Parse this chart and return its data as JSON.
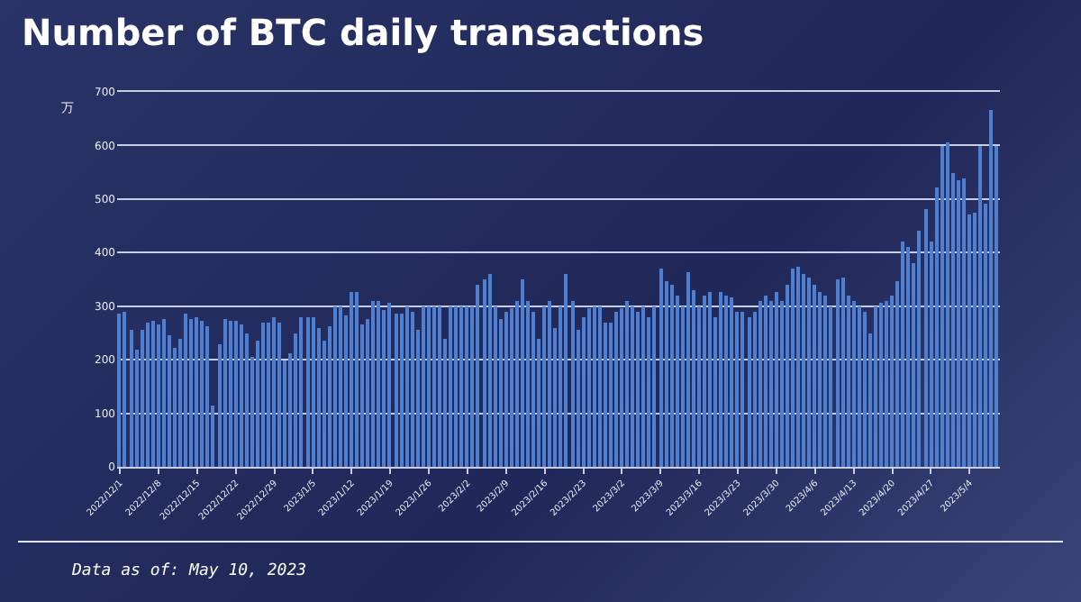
{
  "chart_data": {
    "type": "bar",
    "title": "Number of BTC daily transactions",
    "ylabel": "万",
    "x": [
      "2022-12-01",
      "2022-12-02",
      "2022-12-03",
      "2022-12-04",
      "2022-12-05",
      "2022-12-06",
      "2022-12-07",
      "2022-12-08",
      "2022-12-09",
      "2022-12-10",
      "2022-12-11",
      "2022-12-12",
      "2022-12-13",
      "2022-12-14",
      "2022-12-15",
      "2022-12-16",
      "2022-12-17",
      "2022-12-18",
      "2022-12-19",
      "2022-12-20",
      "2022-12-21",
      "2022-12-22",
      "2022-12-23",
      "2022-12-24",
      "2022-12-25",
      "2022-12-26",
      "2022-12-27",
      "2022-12-28",
      "2022-12-29",
      "2022-12-30",
      "2022-12-31",
      "2023-01-01",
      "2023-01-02",
      "2023-01-03",
      "2023-01-04",
      "2023-01-05",
      "2023-01-06",
      "2023-01-07",
      "2023-01-08",
      "2023-01-09",
      "2023-01-10",
      "2023-01-11",
      "2023-01-12",
      "2023-01-13",
      "2023-01-14",
      "2023-01-15",
      "2023-01-16",
      "2023-01-17",
      "2023-01-18",
      "2023-01-19",
      "2023-01-20",
      "2023-01-21",
      "2023-01-22",
      "2023-01-23",
      "2023-01-24",
      "2023-01-25",
      "2023-01-26",
      "2023-01-27",
      "2023-01-28",
      "2023-01-29",
      "2023-01-30",
      "2023-01-31",
      "2023-02-01",
      "2023-02-02",
      "2023-02-03",
      "2023-02-04",
      "2023-02-05",
      "2023-02-06",
      "2023-02-07",
      "2023-02-08",
      "2023-02-09",
      "2023-02-10",
      "2023-02-11",
      "2023-02-12",
      "2023-02-13",
      "2023-02-14",
      "2023-02-15",
      "2023-02-16",
      "2023-02-17",
      "2023-02-18",
      "2023-02-19",
      "2023-02-20",
      "2023-02-21",
      "2023-02-22",
      "2023-02-23",
      "2023-02-24",
      "2023-02-25",
      "2023-02-26",
      "2023-02-27",
      "2023-02-28",
      "2023-03-01",
      "2023-03-02",
      "2023-03-03",
      "2023-03-04",
      "2023-03-05",
      "2023-03-06",
      "2023-03-07",
      "2023-03-08",
      "2023-03-09",
      "2023-03-10",
      "2023-03-11",
      "2023-03-12",
      "2023-03-13",
      "2023-03-14",
      "2023-03-15",
      "2023-03-16",
      "2023-03-17",
      "2023-03-18",
      "2023-03-19",
      "2023-03-20",
      "2023-03-21",
      "2023-03-22",
      "2023-03-23",
      "2023-03-24",
      "2023-03-25",
      "2023-03-26",
      "2023-03-27",
      "2023-03-28",
      "2023-03-29",
      "2023-03-30",
      "2023-03-31",
      "2023-04-01",
      "2023-04-02",
      "2023-04-03",
      "2023-04-04",
      "2023-04-05",
      "2023-04-06",
      "2023-04-07",
      "2023-04-08",
      "2023-04-09",
      "2023-04-10",
      "2023-04-11",
      "2023-04-12",
      "2023-04-13",
      "2023-04-14",
      "2023-04-15",
      "2023-04-16",
      "2023-04-17",
      "2023-04-18",
      "2023-04-19",
      "2023-04-20",
      "2023-04-21",
      "2023-04-22",
      "2023-04-23",
      "2023-04-24",
      "2023-04-25",
      "2023-04-26",
      "2023-04-27",
      "2023-04-28",
      "2023-04-29",
      "2023-04-30",
      "2023-05-01",
      "2023-05-02",
      "2023-05-03",
      "2023-05-04",
      "2023-05-05",
      "2023-05-06",
      "2023-05-07",
      "2023-05-08",
      "2023-05-09"
    ],
    "values": [
      285,
      290,
      255,
      218,
      255,
      268,
      272,
      265,
      275,
      245,
      222,
      240,
      285,
      275,
      280,
      272,
      262,
      115,
      230,
      275,
      272,
      272,
      265,
      250,
      205,
      235,
      270,
      268,
      278,
      268,
      200,
      212,
      248,
      278,
      278,
      278,
      260,
      235,
      262,
      300,
      298,
      282,
      328,
      328,
      265,
      275,
      310,
      310,
      292,
      305,
      285,
      285,
      300,
      290,
      255,
      300,
      300,
      300,
      300,
      240,
      300,
      300,
      300,
      300,
      300,
      340,
      350,
      360,
      300,
      275,
      290,
      295,
      310,
      350,
      310,
      290,
      240,
      300,
      310,
      260,
      300,
      360,
      310,
      255,
      280,
      295,
      300,
      300,
      270,
      270,
      290,
      295,
      310,
      300,
      290,
      300,
      280,
      300,
      370,
      345,
      340,
      320,
      300,
      365,
      330,
      300,
      320,
      325,
      280,
      325,
      320,
      315,
      290,
      290,
      280,
      290,
      310,
      320,
      310,
      325,
      310,
      340,
      370,
      375,
      360,
      355,
      340,
      325,
      320,
      300,
      350,
      355,
      320,
      310,
      300,
      290,
      250,
      300,
      305,
      310,
      320,
      345,
      420,
      410,
      380,
      440,
      480,
      420,
      520,
      600,
      605,
      550,
      535,
      540,
      470,
      475,
      600,
      490,
      665,
      600
    ],
    "color": "#4f7fd0",
    "xlim": [
      "2022-11-30T12:00",
      "2023-05-09T12:00"
    ],
    "xticks": [
      {
        "value": "2022-12-01",
        "label": "2022/12/1"
      },
      {
        "value": "2022-12-08",
        "label": "2022/12/8"
      },
      {
        "value": "2022-12-15",
        "label": "2022/12/15"
      },
      {
        "value": "2022-12-22",
        "label": "2022/12/22"
      },
      {
        "value": "2022-12-29",
        "label": "2022/12/29"
      },
      {
        "value": "2023-01-05",
        "label": "2023/1/5"
      },
      {
        "value": "2023-01-12",
        "label": "2023/1/12"
      },
      {
        "value": "2023-01-19",
        "label": "2023/1/19"
      },
      {
        "value": "2023-01-26",
        "label": "2023/1/26"
      },
      {
        "value": "2023-02-02",
        "label": "2023/2/2"
      },
      {
        "value": "2023-02-09",
        "label": "2023/2/9"
      },
      {
        "value": "2023-02-16",
        "label": "2023/2/16"
      },
      {
        "value": "2023-02-23",
        "label": "2023/2/23"
      },
      {
        "value": "2023-03-02",
        "label": "2023/3/2"
      },
      {
        "value": "2023-03-09",
        "label": "2023/3/9"
      },
      {
        "value": "2023-03-16",
        "label": "2023/3/16"
      },
      {
        "value": "2023-03-23",
        "label": "2023/3/23"
      },
      {
        "value": "2023-03-30",
        "label": "2023/3/30"
      },
      {
        "value": "2023-04-06",
        "label": "2023/4/6"
      },
      {
        "value": "2023-04-13",
        "label": "2023/4/13"
      },
      {
        "value": "2023-04-20",
        "label": "2023/4/20"
      },
      {
        "value": "2023-04-27",
        "label": "2023/4/27"
      },
      {
        "value": "2023-05-04",
        "label": "2023/5/4"
      }
    ],
    "ylim": [
      0,
      700
    ],
    "yticks": [
      0,
      100,
      200,
      300,
      400,
      500,
      600,
      700
    ],
    "grid": "y",
    "legend": false,
    "annotations": [
      "Data as of: May 10, 2023"
    ]
  }
}
